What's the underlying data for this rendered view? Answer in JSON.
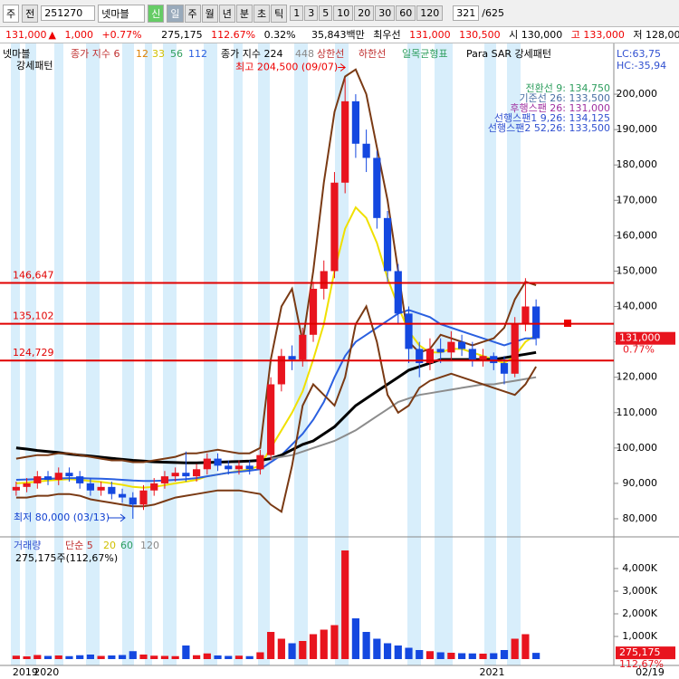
{
  "toolbar": {
    "market": "주",
    "prev": "전",
    "code": "251270",
    "name": "넷마블",
    "credit": "신",
    "periods": [
      "일",
      "주",
      "월",
      "년",
      "분",
      "초",
      "틱"
    ],
    "intervals": [
      "1",
      "3",
      "5",
      "10",
      "20",
      "30",
      "60",
      "120"
    ],
    "count": "321",
    "total": "/625"
  },
  "quote": {
    "price": "131,000",
    "arrow": "▲",
    "change": "1,000",
    "rate": "+0.77%",
    "volume": "275,175",
    "vol_ratio": "112.67%",
    "turnover": "0.32%",
    "amount": "35,843백만",
    "best_label": "최우선",
    "ask": "131,000",
    "bid": "130,500",
    "open": "시 130,000",
    "high": "고 133,000",
    "low": "저 128,000"
  },
  "chart_data": {
    "type": "candlestick",
    "legend": {
      "name": "넷마블",
      "ma_label": "종가 지수 6",
      "ma_periods": [
        "12",
        "33",
        "56",
        "112"
      ],
      "ma2_label": "종가 지수 224",
      "ma2_periods": [
        "448"
      ],
      "upper": "상한선",
      "lower": "하한선",
      "ichimoku": "일목균형표",
      "sar": "Para SAR 강세패턴"
    },
    "pattern": "강세패턴",
    "lc": "LC:63,75",
    "hc": "HC:-35,94",
    "ichimoku_lines": [
      {
        "text": "전환선 9: 134,750",
        "color": "#2e9e5e"
      },
      {
        "text": "기준선 26: 133,500",
        "color": "#4a6fa5"
      },
      {
        "text": "후행스팬 26: 131,000",
        "color": "#a030a0"
      },
      {
        "text": "선행스팬1 9,26: 134,125",
        "color": "#3050d0"
      },
      {
        "text": "선행스팬2 52,26: 133,500",
        "color": "#3050d0"
      }
    ],
    "categories": [
      "2019",
      null,
      "2020",
      null,
      null,
      null,
      null,
      null,
      null,
      null,
      null,
      null,
      null,
      null,
      null,
      null,
      null,
      null,
      null,
      null,
      null,
      null,
      null,
      null,
      null,
      null,
      null,
      null,
      null,
      null,
      null,
      null,
      null,
      null,
      null,
      null,
      null,
      null,
      null,
      null,
      null,
      null,
      null,
      null,
      "2021",
      null,
      null,
      null,
      null,
      null
    ],
    "open": [
      88000,
      89000,
      90000,
      92000,
      91000,
      93000,
      92000,
      90000,
      88000,
      89000,
      87000,
      86000,
      84000,
      88000,
      90000,
      92000,
      93000,
      92000,
      94000,
      97000,
      95000,
      94000,
      95000,
      94000,
      98000,
      118000,
      126000,
      125000,
      132000,
      145000,
      150000,
      175000,
      198000,
      186000,
      182000,
      165000,
      150000,
      138000,
      128000,
      124000,
      128000,
      127000,
      130000,
      128000,
      125000,
      126000,
      124000,
      121000,
      135000,
      140000
    ],
    "high": [
      90500,
      91500,
      93500,
      93500,
      94500,
      94500,
      93500,
      91500,
      90500,
      90500,
      88500,
      87500,
      89500,
      91500,
      93500,
      94500,
      99000,
      95500,
      98500,
      98500,
      96500,
      96500,
      96500,
      99500,
      120000,
      128000,
      129000,
      134000,
      147000,
      153000,
      178000,
      204500,
      200000,
      190000,
      184000,
      167000,
      152000,
      140000,
      130000,
      131000,
      131000,
      133000,
      132000,
      130000,
      128000,
      127000,
      126000,
      137000,
      148000,
      142000
    ],
    "low": [
      86500,
      87500,
      88500,
      89500,
      89500,
      90500,
      88500,
      86500,
      86500,
      85500,
      84500,
      80000,
      82500,
      86500,
      88500,
      90500,
      90500,
      90500,
      92500,
      93500,
      92500,
      92500,
      92500,
      92500,
      96500,
      116000,
      122000,
      123000,
      130000,
      142000,
      148000,
      172000,
      182000,
      178000,
      162000,
      147000,
      135000,
      124000,
      120000,
      122000,
      124000,
      125000,
      126000,
      123000,
      123000,
      122000,
      118000,
      120000,
      133000,
      129000
    ],
    "close": [
      89000,
      90000,
      92000,
      91000,
      93000,
      92000,
      90000,
      88000,
      89000,
      87000,
      86000,
      84000,
      88000,
      90000,
      92000,
      93000,
      92000,
      94000,
      97000,
      95000,
      94000,
      95000,
      94000,
      98000,
      118000,
      126000,
      125000,
      132000,
      145000,
      150000,
      175000,
      198000,
      186000,
      182000,
      165000,
      150000,
      138000,
      128000,
      124000,
      128000,
      127000,
      130000,
      128000,
      125000,
      126000,
      124000,
      121000,
      135000,
      140000,
      131000
    ],
    "up_color": "#e8141e",
    "down_color": "#1448e0",
    "series": [
      {
        "color": "#f0e000",
        "width": 2,
        "values": [
          90000,
          90200,
          90500,
          90800,
          91000,
          91200,
          91000,
          90700,
          90400,
          90000,
          89600,
          89000,
          88800,
          89000,
          89500,
          90000,
          90500,
          91000,
          92000,
          92500,
          93000,
          93500,
          94000,
          95000,
          100000,
          105000,
          110000,
          116000,
          125000,
          135000,
          150000,
          162000,
          168000,
          165000,
          158000,
          148000,
          140000,
          133000,
          129000,
          127000,
          127000,
          128000,
          128000,
          127000,
          126000,
          125000,
          124000,
          126000,
          130000,
          132000
        ]
      },
      {
        "color": "#2a60e0",
        "width": 2,
        "values": [
          91000,
          91100,
          91200,
          91300,
          91400,
          91500,
          91500,
          91400,
          91300,
          91200,
          91000,
          90800,
          90700,
          90700,
          90800,
          91000,
          91200,
          91500,
          92000,
          92500,
          93000,
          93300,
          93600,
          94000,
          96000,
          98000,
          101000,
          104000,
          108000,
          113000,
          120000,
          126000,
          130000,
          132000,
          134000,
          136000,
          138000,
          139000,
          138000,
          137000,
          135000,
          134000,
          133000,
          132000,
          131000,
          130000,
          129000,
          130000,
          131000,
          131000
        ]
      },
      {
        "color": "#000000",
        "width": 3,
        "values": [
          100000,
          99700,
          99300,
          99000,
          98700,
          98300,
          98000,
          97700,
          97400,
          97100,
          96800,
          96500,
          96300,
          96100,
          96000,
          95900,
          95800,
          95800,
          95900,
          96000,
          96100,
          96200,
          96300,
          96500,
          97000,
          98000,
          99500,
          101000,
          102000,
          104000,
          106000,
          109000,
          112000,
          114000,
          116000,
          118000,
          120000,
          122000,
          123000,
          124000,
          125000,
          125000,
          125000,
          125000,
          125000,
          125000,
          125500,
          126000,
          126500,
          127000
        ]
      },
      {
        "color": "#8c8c8c",
        "width": 2,
        "values": [
          null,
          null,
          null,
          null,
          null,
          null,
          null,
          null,
          null,
          null,
          null,
          null,
          null,
          null,
          null,
          null,
          null,
          null,
          null,
          null,
          null,
          null,
          null,
          null,
          97000,
          97500,
          98000,
          99000,
          100000,
          101000,
          102000,
          103500,
          105000,
          107000,
          109000,
          111000,
          113000,
          114000,
          115000,
          115500,
          116000,
          116500,
          117000,
          117500,
          118000,
          118000,
          118500,
          119000,
          119500,
          120000
        ]
      },
      {
        "color": "#7a3a14",
        "width": 2,
        "values": [
          97000,
          97500,
          98000,
          98000,
          98500,
          98500,
          98000,
          97500,
          97000,
          96500,
          96500,
          96000,
          96000,
          96500,
          97000,
          97500,
          98500,
          98500,
          99000,
          99500,
          99000,
          98500,
          98500,
          100000,
          125000,
          140000,
          145000,
          130000,
          150000,
          175000,
          195000,
          205000,
          207000,
          200000,
          185000,
          170000,
          150000,
          130000,
          127000,
          128000,
          132000,
          131000,
          130000,
          129000,
          130000,
          131000,
          134000,
          142000,
          147000,
          146000
        ]
      },
      {
        "color": "#7a3a14",
        "width": 2,
        "values": [
          86000,
          86000,
          86500,
          86500,
          87000,
          87000,
          86500,
          85500,
          85000,
          84500,
          84000,
          83500,
          83500,
          84000,
          85000,
          86000,
          86500,
          87000,
          87500,
          88000,
          88000,
          88000,
          87500,
          87000,
          84000,
          82000,
          95000,
          112000,
          118000,
          115000,
          112000,
          120000,
          135000,
          140000,
          130000,
          115000,
          110000,
          112000,
          117000,
          119000,
          120000,
          121000,
          120000,
          119000,
          118000,
          117000,
          116000,
          115000,
          118000,
          123000
        ]
      }
    ],
    "levels": [
      {
        "value": 146647,
        "label": "146,647"
      },
      {
        "value": 135102,
        "label": "135,102"
      },
      {
        "value": 124729,
        "label": "124,729"
      }
    ],
    "level_color": "#e00000",
    "annotations": {
      "high": "최고 204,500 (09/07)",
      "low": "최저 80,000 (03/13)"
    },
    "last_price": {
      "value": 131000,
      "label": "131,000"
    },
    "last_rate": "0.77%",
    "ylim": [
      75140,
      213830
    ],
    "yticks": [
      {
        "value": 80000,
        "label": "80,000"
      },
      {
        "value": 90000,
        "label": "90,000"
      },
      {
        "value": 100000,
        "label": "100,000"
      },
      {
        "value": 110000,
        "label": "110,000"
      },
      {
        "value": 120000,
        "label": "120,000"
      },
      {
        "value": 130000,
        "label": "130,000"
      },
      {
        "value": 140000,
        "label": "140,000"
      },
      {
        "value": 150000,
        "label": "150,000"
      },
      {
        "value": 160000,
        "label": "160,000"
      },
      {
        "value": 170000,
        "label": "170,000"
      },
      {
        "value": 180000,
        "label": "180,000"
      },
      {
        "value": 190000,
        "label": "190,000"
      },
      {
        "value": 200000,
        "label": "200,000"
      }
    ],
    "volume": {
      "legend": "거래량",
      "ma_label": "단순 5",
      "ma_periods": [
        "20",
        "60",
        "120"
      ],
      "info": "275,175주(112,67%)",
      "values": [
        150000,
        120000,
        180000,
        140000,
        160000,
        130000,
        170000,
        200000,
        140000,
        160000,
        180000,
        350000,
        200000,
        150000,
        140000,
        130000,
        600000,
        170000,
        250000,
        160000,
        140000,
        150000,
        130000,
        300000,
        1200000,
        900000,
        700000,
        800000,
        1100000,
        1300000,
        1500000,
        4800000,
        1800000,
        1200000,
        900000,
        700000,
        600000,
        500000,
        400000,
        350000,
        300000,
        280000,
        260000,
        250000,
        240000,
        260000,
        400000,
        900000,
        1100000,
        275175
      ],
      "ylim": [
        0,
        5200000
      ],
      "yticks": [
        {
          "value": 1000000,
          "label": "1,000K"
        },
        {
          "value": 2000000,
          "label": "2,000K"
        },
        {
          "value": 3000000,
          "label": "3,000K"
        },
        {
          "value": 4000000,
          "label": "4,000K"
        }
      ],
      "last": {
        "value": 275175,
        "label": "275,175"
      },
      "last_rate": "112,67%"
    },
    "date_tag": "02/19"
  }
}
